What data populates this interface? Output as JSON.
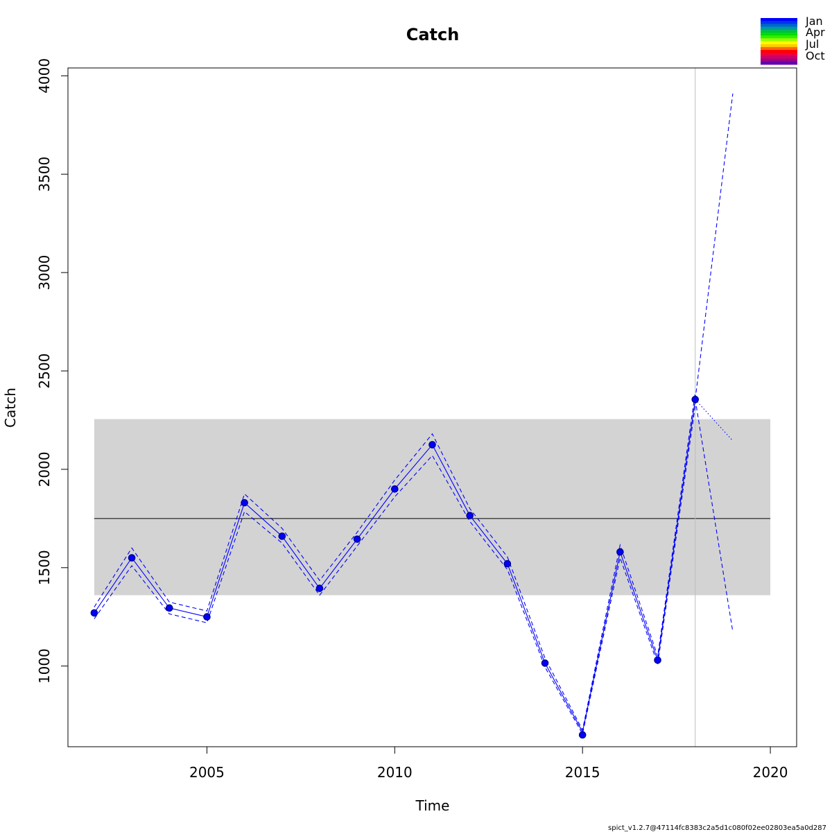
{
  "chart_data": {
    "type": "line",
    "title": "Catch",
    "xlabel": "Time",
    "ylabel": "Catch",
    "xlim": [
      2001.3,
      2020.7
    ],
    "ylim": [
      590,
      4040
    ],
    "x_ticks": [
      2005,
      2010,
      2015,
      2020
    ],
    "y_ticks": [
      1000,
      1500,
      2000,
      2500,
      3000,
      3500,
      4000
    ],
    "x_tick_labels": [
      "2005",
      "2010",
      "2015",
      "2020"
    ],
    "y_tick_labels": [
      "1000",
      "1500",
      "2000",
      "2500",
      "3000",
      "3500",
      "4000"
    ],
    "grid": false,
    "reference_band": {
      "x_range": [
        2002,
        2020
      ],
      "lower": 1360,
      "upper": 2255,
      "color": "#d3d3d3"
    },
    "reference_line": {
      "x_range": [
        2002,
        2020
      ],
      "y": 1750,
      "color": "#000000"
    },
    "vertical_line": {
      "x": 2018,
      "color": "#bebebe"
    },
    "series": [
      {
        "role": "estimate",
        "x": [
          2002,
          2003,
          2004,
          2005,
          2006,
          2007,
          2008,
          2009,
          2010,
          2011,
          2012,
          2013,
          2014,
          2015,
          2016,
          2017,
          2018
        ],
        "values": [
          1270,
          1550,
          1295,
          1250,
          1830,
          1660,
          1395,
          1645,
          1900,
          2125,
          1765,
          1520,
          1015,
          665,
          1580,
          1030,
          2355
        ],
        "color": "#0000ff",
        "line_style": "solid"
      },
      {
        "role": "upper-ci",
        "x": [
          2002,
          2003,
          2004,
          2005,
          2006,
          2007,
          2008,
          2009,
          2010,
          2011,
          2012,
          2013,
          2014,
          2015,
          2016,
          2017,
          2018
        ],
        "values": [
          1300,
          1600,
          1325,
          1280,
          1875,
          1700,
          1435,
          1680,
          1945,
          2180,
          1800,
          1555,
          1040,
          675,
          1615,
          1050,
          2390
        ],
        "color": "#0000ff",
        "line_style": "dashed"
      },
      {
        "role": "lower-ci",
        "x": [
          2002,
          2003,
          2004,
          2005,
          2006,
          2007,
          2008,
          2009,
          2010,
          2011,
          2012,
          2013,
          2014,
          2015,
          2016,
          2017,
          2018
        ],
        "values": [
          1240,
          1510,
          1265,
          1220,
          1785,
          1625,
          1360,
          1610,
          1860,
          2070,
          1735,
          1490,
          995,
          655,
          1550,
          1010,
          2320
        ],
        "color": "#0000ff",
        "line_style": "dashed"
      },
      {
        "role": "forecast",
        "x": [
          2018,
          2019
        ],
        "values": [
          2355,
          2145
        ],
        "color": "#0000ff",
        "line_style": "dotted"
      },
      {
        "role": "forecast-upper-ci",
        "x": [
          2018,
          2019
        ],
        "values": [
          2355,
          3910
        ],
        "color": "#0000ff",
        "line_style": "dashed"
      },
      {
        "role": "forecast-lower-ci",
        "x": [
          2018,
          2019
        ],
        "values": [
          2355,
          1175
        ],
        "color": "#0000ff",
        "line_style": "dashed"
      }
    ],
    "observations": {
      "x": [
        2002,
        2003,
        2004,
        2005,
        2006,
        2007,
        2008,
        2009,
        2010,
        2011,
        2012,
        2013,
        2014,
        2015,
        2016,
        2017,
        2018
      ],
      "values": [
        1270,
        1550,
        1295,
        1250,
        1830,
        1660,
        1395,
        1645,
        1900,
        2125,
        1765,
        1520,
        1015,
        650,
        1580,
        1030,
        2355
      ],
      "color": "#0000ff",
      "outline": "#00008b"
    },
    "legend": {
      "placement": "top-right",
      "type": "color-bar",
      "labels": [
        "Jan",
        "Apr",
        "Jul",
        "Oct"
      ],
      "colors": [
        "#0000ff",
        "#0033ee",
        "#0066cc",
        "#009999",
        "#00bb55",
        "#00dd00",
        "#33ee00",
        "#99ff00",
        "#ffff00",
        "#ffcc00",
        "#ff6600",
        "#ff0000",
        "#ee0044",
        "#cc0066",
        "#990088",
        "#6600aa"
      ]
    },
    "footer": "spict_v1.2.7@47114fc8383c2a5d1c080f02ee02803ea5a0d287"
  }
}
